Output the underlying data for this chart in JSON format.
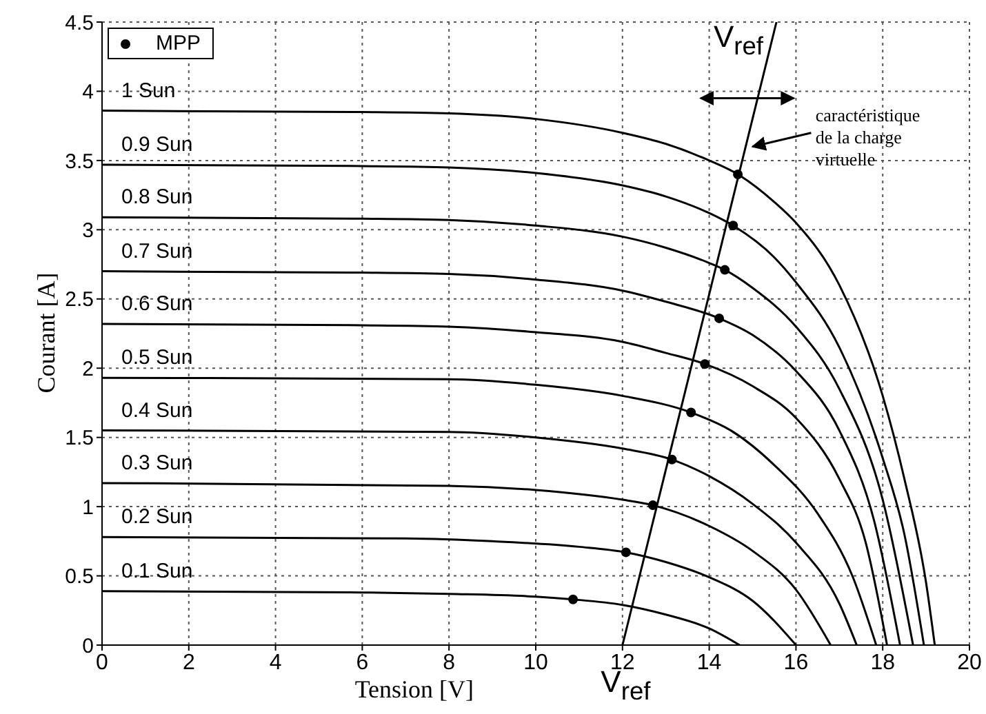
{
  "chart_data": {
    "type": "line",
    "xlabel": "Tension [V]",
    "ylabel": "Courant [A]",
    "xlim": [
      0,
      20
    ],
    "ylim": [
      0,
      4.5
    ],
    "xticks": [
      0,
      2,
      4,
      6,
      8,
      10,
      12,
      14,
      16,
      18,
      20
    ],
    "yticks": [
      0,
      0.5,
      1,
      1.5,
      2,
      2.5,
      3,
      3.5,
      4,
      4.5
    ],
    "grid": true,
    "legend": "top left",
    "line_style": "solid",
    "marker": "none",
    "annotations": [
      "V$_{ref}$",
      "V$_{ref}$",
      "caractéristique de la charge virtuelle"
    ],
    "series": [
      {
        "name": "1 Sun",
        "color": "#000000",
        "x": [
          0,
          6,
          8,
          10,
          12,
          13,
          14,
          14.66,
          15.5,
          16,
          17,
          18,
          18.5,
          19,
          19.2
        ],
        "values": [
          3.86,
          3.85,
          3.84,
          3.8,
          3.7,
          3.62,
          3.5,
          3.4,
          3.2,
          3.05,
          2.6,
          1.8,
          1.2,
          0.45,
          0
        ]
      },
      {
        "name": "0.9 Sun",
        "color": "#000000",
        "x": [
          0,
          6,
          8,
          10,
          12,
          13,
          14,
          14.55,
          15.5,
          16,
          17,
          18,
          18.5,
          18.95
        ],
        "values": [
          3.47,
          3.46,
          3.45,
          3.41,
          3.32,
          3.24,
          3.12,
          3.03,
          2.8,
          2.62,
          2.15,
          1.35,
          0.8,
          0
        ]
      },
      {
        "name": "0.8 Sun",
        "color": "#000000",
        "x": [
          0,
          6,
          8,
          10,
          12,
          13,
          14,
          14.36,
          15,
          16,
          17,
          18,
          18.7
        ],
        "values": [
          3.09,
          3.08,
          3.07,
          3.03,
          2.95,
          2.87,
          2.76,
          2.71,
          2.58,
          2.3,
          1.85,
          1.05,
          0
        ]
      },
      {
        "name": "0.7 Sun",
        "color": "#000000",
        "x": [
          0,
          6,
          8,
          10,
          12,
          13,
          14.23,
          15,
          16,
          17,
          17.8,
          18.4
        ],
        "values": [
          2.7,
          2.69,
          2.68,
          2.64,
          2.56,
          2.48,
          2.36,
          2.24,
          1.98,
          1.55,
          0.9,
          0
        ]
      },
      {
        "name": "0.6 Sun",
        "color": "#000000",
        "x": [
          0,
          6,
          8,
          10,
          12,
          13,
          13.9,
          15,
          16,
          17,
          17.6,
          18.1
        ],
        "values": [
          2.32,
          2.31,
          2.3,
          2.26,
          2.19,
          2.11,
          2.03,
          1.87,
          1.64,
          1.2,
          0.75,
          0
        ]
      },
      {
        "name": "0.5 Sun",
        "color": "#000000",
        "x": [
          0,
          8,
          10,
          12,
          13.58,
          14.5,
          15.5,
          16.5,
          17.3,
          17.85
        ],
        "values": [
          1.93,
          1.92,
          1.88,
          1.8,
          1.68,
          1.55,
          1.3,
          0.95,
          0.5,
          0
        ]
      },
      {
        "name": "0.4 Sun",
        "color": "#000000",
        "x": [
          0,
          8,
          10,
          12,
          13.14,
          14,
          15,
          16,
          17,
          17.4
        ],
        "values": [
          1.55,
          1.54,
          1.5,
          1.42,
          1.34,
          1.22,
          1.02,
          0.74,
          0.3,
          0
        ]
      },
      {
        "name": "0.3 Sun",
        "color": "#000000",
        "x": [
          0,
          8,
          10,
          12,
          12.7,
          14,
          15,
          16,
          16.8
        ],
        "values": [
          1.17,
          1.15,
          1.12,
          1.05,
          1.01,
          0.86,
          0.68,
          0.4,
          0
        ]
      },
      {
        "name": "0.2 Sun",
        "color": "#000000",
        "x": [
          0,
          7,
          9,
          11,
          12.08,
          13,
          14,
          15,
          16
        ],
        "values": [
          0.78,
          0.77,
          0.75,
          0.71,
          0.67,
          0.6,
          0.49,
          0.32,
          0
        ]
      },
      {
        "name": "0.1 Sun",
        "color": "#000000",
        "x": [
          0,
          6,
          8,
          10,
          10.86,
          12,
          13,
          14,
          14.7
        ],
        "values": [
          0.39,
          0.38,
          0.37,
          0.35,
          0.33,
          0.29,
          0.22,
          0.12,
          0
        ]
      },
      {
        "color": "#000000",
        "x": [
          12,
          15.55
        ],
        "values": [
          0,
          4.5
        ]
      },
      {
        "name": "MPP",
        "type": "scatter",
        "marker": "circle",
        "color": "#000000",
        "x": [
          10.86,
          12.08,
          12.7,
          13.14,
          13.58,
          13.9,
          14.23,
          14.36,
          14.55,
          14.66
        ],
        "values": [
          0.33,
          0.67,
          1.01,
          1.34,
          1.68,
          2.03,
          2.36,
          2.71,
          3.03,
          3.4
        ]
      }
    ]
  }
}
